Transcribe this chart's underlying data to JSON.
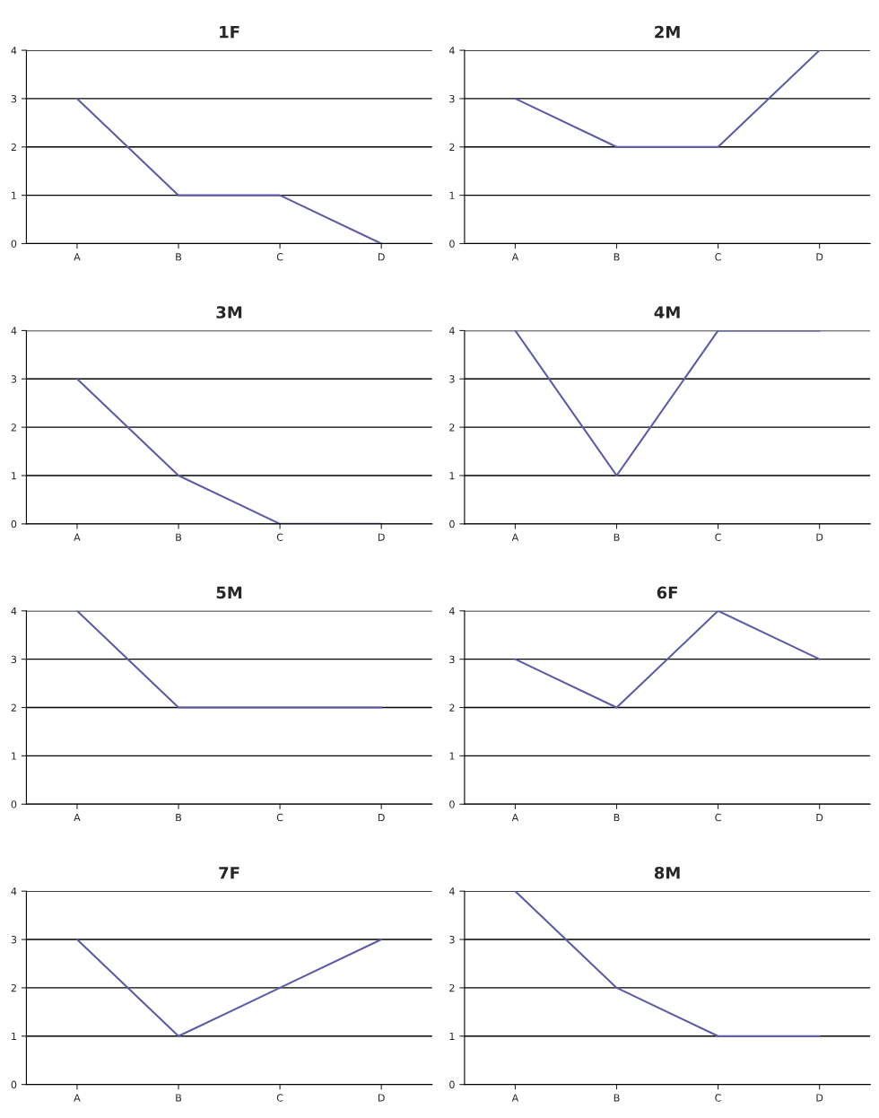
{
  "chart_data": [
    {
      "type": "line",
      "title": "1F",
      "categories": [
        "A",
        "B",
        "C",
        "D"
      ],
      "values": [
        3,
        1,
        1,
        0
      ],
      "color": "#5b5ba8",
      "ylim": [
        0,
        4
      ],
      "yticks": [
        0,
        1,
        2,
        3,
        4
      ],
      "grid": "y"
    },
    {
      "type": "line",
      "title": "2M",
      "categories": [
        "A",
        "B",
        "C",
        "D"
      ],
      "values": [
        3,
        2,
        2,
        4
      ],
      "color": "#5b5ba8",
      "ylim": [
        0,
        4
      ],
      "yticks": [
        0,
        1,
        2,
        3,
        4
      ],
      "grid": "y"
    },
    {
      "type": "line",
      "title": "3M",
      "categories": [
        "A",
        "B",
        "C",
        "D"
      ],
      "values": [
        3,
        1,
        0,
        0
      ],
      "color": "#5b5ba8",
      "ylim": [
        0,
        4
      ],
      "yticks": [
        0,
        1,
        2,
        3,
        4
      ],
      "grid": "y"
    },
    {
      "type": "line",
      "title": "4M",
      "categories": [
        "A",
        "B",
        "C",
        "D"
      ],
      "values": [
        4,
        1,
        4,
        4
      ],
      "color": "#5b5ba8",
      "ylim": [
        0,
        4
      ],
      "yticks": [
        0,
        1,
        2,
        3,
        4
      ],
      "grid": "y"
    },
    {
      "type": "line",
      "title": "5M",
      "categories": [
        "A",
        "B",
        "C",
        "D"
      ],
      "values": [
        4,
        2,
        2,
        2
      ],
      "color": "#5b5ba8",
      "ylim": [
        0,
        4
      ],
      "yticks": [
        0,
        1,
        2,
        3,
        4
      ],
      "grid": "y"
    },
    {
      "type": "line",
      "title": "6F",
      "categories": [
        "A",
        "B",
        "C",
        "D"
      ],
      "values": [
        3,
        2,
        4,
        3
      ],
      "color": "#5b5ba8",
      "ylim": [
        0,
        4
      ],
      "yticks": [
        0,
        1,
        2,
        3,
        4
      ],
      "grid": "y"
    },
    {
      "type": "line",
      "title": "7F",
      "categories": [
        "A",
        "B",
        "C",
        "D"
      ],
      "values": [
        3,
        1,
        2,
        3
      ],
      "color": "#5b5ba8",
      "ylim": [
        0,
        4
      ],
      "yticks": [
        0,
        1,
        2,
        3,
        4
      ],
      "grid": "y"
    },
    {
      "type": "line",
      "title": "8M",
      "categories": [
        "A",
        "B",
        "C",
        "D"
      ],
      "values": [
        4,
        2,
        1,
        1
      ],
      "color": "#5b5ba8",
      "ylim": [
        0,
        4
      ],
      "yticks": [
        0,
        1,
        2,
        3,
        4
      ],
      "grid": "y"
    }
  ]
}
